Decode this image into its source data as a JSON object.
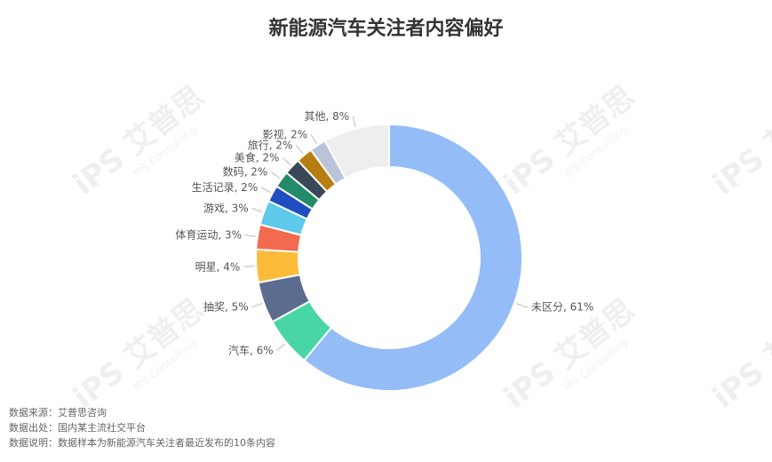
{
  "chart_data": {
    "type": "pie",
    "title": "新能源汽车关注者内容偏好",
    "donut": true,
    "slices": [
      {
        "label": "未区分",
        "value": 61,
        "text": "未区分, 61%",
        "color": "#94BCF7"
      },
      {
        "label": "汽车",
        "value": 6,
        "text": "汽车, 6%",
        "color": "#48D6A4"
      },
      {
        "label": "抽奖",
        "value": 5,
        "text": "抽奖, 5%",
        "color": "#5B6D8F"
      },
      {
        "label": "明星",
        "value": 4,
        "text": "明星, 4%",
        "color": "#FDBB3A"
      },
      {
        "label": "体育运动",
        "value": 3,
        "text": "体育运动, 3%",
        "color": "#F26A4F"
      },
      {
        "label": "游戏",
        "value": 3,
        "text": "游戏, 3%",
        "color": "#5DC9EB"
      },
      {
        "label": "生活记录",
        "value": 2,
        "text": "生活记录, 2%",
        "color": "#1F4FBF"
      },
      {
        "label": "数码",
        "value": 2,
        "text": "数码, 2%",
        "color": "#238A6A"
      },
      {
        "label": "美食",
        "value": 2,
        "text": "美食, 2%",
        "color": "#3A4758"
      },
      {
        "label": "旅行",
        "value": 2,
        "text": "旅行, 2%",
        "color": "#B67E10"
      },
      {
        "label": "影视",
        "value": 2,
        "text": "影视, 2%",
        "color": "#B9C4D9"
      },
      {
        "label": "其他",
        "value": 8,
        "text": "其他, 8%",
        "color": "#EEEEEE"
      }
    ]
  },
  "footnotes": {
    "source": "数据来源：艾普思咨询",
    "origin": "数据出处：国内某主流社交平台",
    "note": "数据说明：数据样本为新能源汽车关注者最近发布的10条内容"
  },
  "watermark": {
    "main": "iPS 艾普思",
    "sub": "IPS Consulting"
  }
}
